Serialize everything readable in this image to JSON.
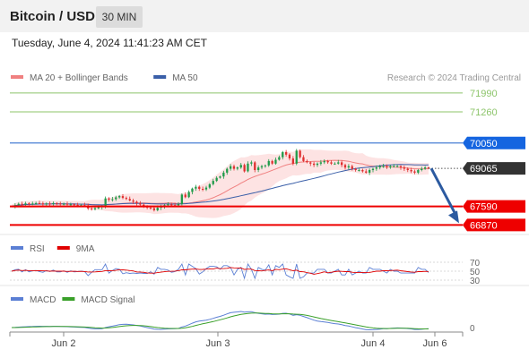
{
  "header": {
    "title": "Bitcoin / USD",
    "timeframe": "30 MIN",
    "datetime": "Tuesday, June 4, 2024 11:41:23 AM CET"
  },
  "colors": {
    "bull": "#1f9b4a",
    "bear": "#e03030",
    "ma20": "#f08080",
    "band_fill": "#fbd0d0",
    "ma50": "#3a5fa8",
    "support": "#ee0000",
    "resistance_blue": "#4a7fd4",
    "resistance_green": "#8cc46a",
    "current": "#333333",
    "arrow": "#2c5aa0",
    "rsi": "#5b7fd4",
    "rsi_ma": "#e00000",
    "macd": "#5b7fd4",
    "macd_signal": "#3aa02a"
  },
  "chart_data": [
    {
      "type": "candlestick",
      "legend": [
        {
          "label": "MA 20 + Bollinger Bands",
          "color": "#f08080"
        },
        {
          "label": "MA 50",
          "color": "#3a5fa8"
        }
      ],
      "watermark": "Research © 2024 Trading Central",
      "x_ticks": [
        "Jun 2",
        "Jun 3",
        "Jun 4",
        "Jun 6"
      ],
      "ylim": [
        66500,
        72300
      ],
      "levels": [
        {
          "label": "71990",
          "value": 71990,
          "style": "resistance_green"
        },
        {
          "label": "71260",
          "value": 71260,
          "style": "resistance_green"
        },
        {
          "label": "70050",
          "value": 70050,
          "style": "resistance_blue"
        },
        {
          "label": "69065",
          "value": 69065,
          "style": "current"
        },
        {
          "label": "67590",
          "value": 67590,
          "style": "support"
        },
        {
          "label": "66870",
          "value": 66870,
          "style": "support"
        }
      ],
      "close_series": [
        67600,
        67640,
        67690,
        67670,
        67710,
        67690,
        67700,
        67720,
        67710,
        67680,
        67700,
        67690,
        67720,
        67700,
        67680,
        67690,
        67660,
        67670,
        67650,
        67640,
        67640,
        67630,
        67510,
        67480,
        67520,
        67560,
        67600,
        67900,
        67850,
        67870,
        67940,
        67990,
        67920,
        67880,
        67820,
        67770,
        67710,
        67660,
        67600,
        67540,
        67520,
        67440,
        67540,
        67590,
        67640,
        67670,
        67640,
        67630,
        67680,
        68050,
        67950,
        68150,
        68280,
        68350,
        68270,
        68250,
        68320,
        68450,
        68580,
        68700,
        68750,
        68900,
        69050,
        69150,
        69050,
        69100,
        69200,
        68950,
        69250,
        69300,
        69000,
        69100,
        69150,
        69180,
        69350,
        69250,
        69400,
        69500,
        69700,
        69600,
        69450,
        69250,
        69750,
        69500,
        69350,
        69300,
        69250,
        69200,
        69250,
        69300,
        69350,
        69300,
        69250,
        69250,
        69300,
        69200,
        69100,
        69150,
        69050,
        69000,
        69000,
        68950,
        68900,
        69000,
        69050,
        69100,
        69150,
        69150,
        69100,
        69150,
        69150,
        69150,
        69100,
        69050,
        69000,
        68950,
        68900,
        69000,
        69050,
        69100,
        69065
      ]
    },
    {
      "type": "line",
      "indicator": "RSI",
      "legend": [
        {
          "label": "RSI",
          "color": "#5b7fd4"
        },
        {
          "label": "9MA",
          "color": "#e00000"
        }
      ],
      "y_ticks": [
        "70",
        "50",
        "30"
      ],
      "ylim": [
        28,
        72
      ]
    },
    {
      "type": "line",
      "indicator": "MACD",
      "legend": [
        {
          "label": "MACD",
          "color": "#5b7fd4"
        },
        {
          "label": "MACD Signal",
          "color": "#3aa02a"
        }
      ],
      "y_ticks": [
        "0"
      ]
    }
  ]
}
